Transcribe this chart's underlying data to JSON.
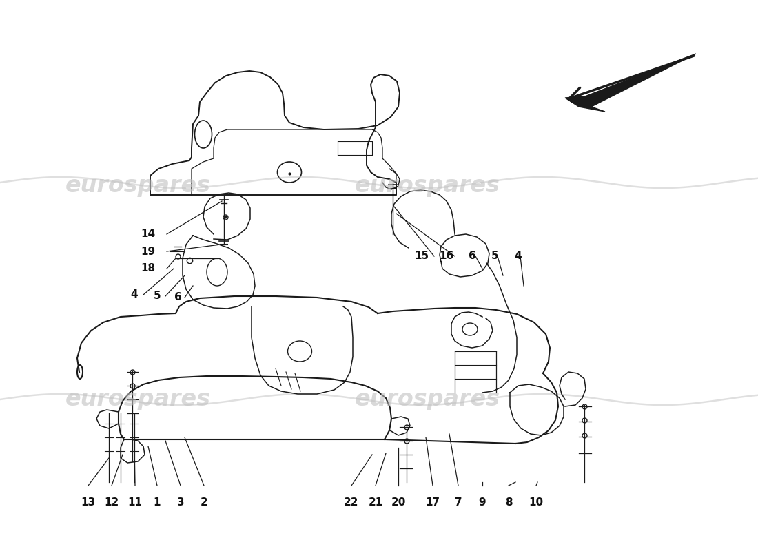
{
  "bg_color": "#ffffff",
  "line_color": "#1a1a1a",
  "watermark_color": "#c0c0c0",
  "figsize": [
    11.0,
    8.0
  ],
  "dpi": 100,
  "xlim": [
    0,
    1100
  ],
  "ylim": [
    0,
    800
  ]
}
